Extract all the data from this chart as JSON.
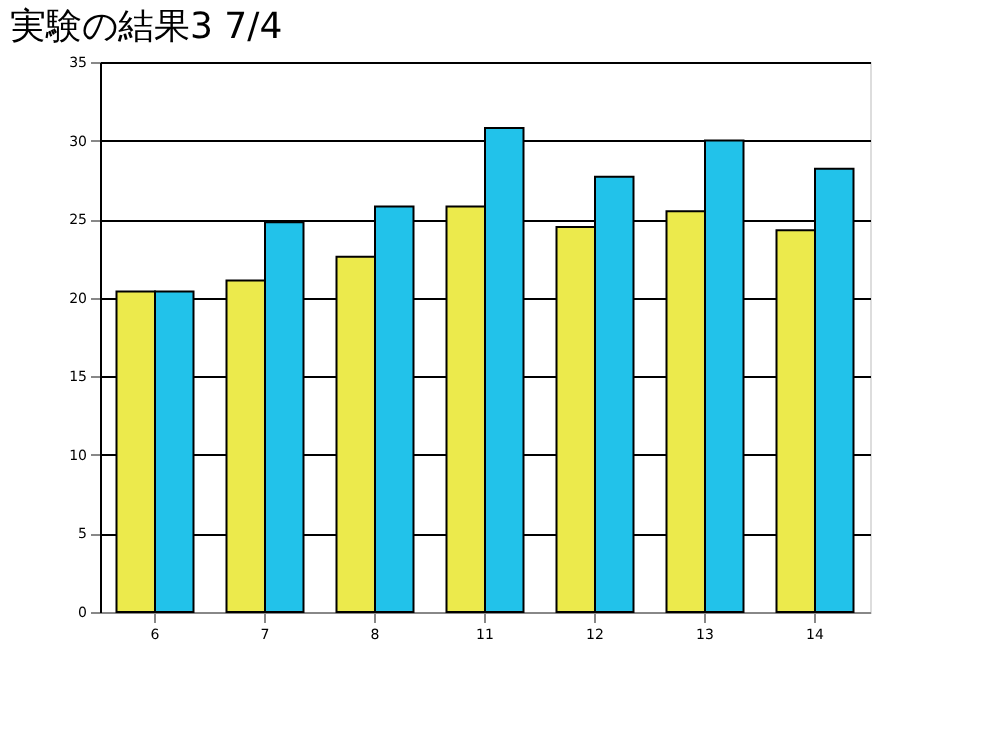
{
  "chart_data": {
    "type": "bar",
    "title": "実験の結果3  7/4",
    "categories": [
      "6",
      "7",
      "8",
      "11",
      "12",
      "13",
      "14"
    ],
    "series": [
      {
        "color": "#ecea4c",
        "values": [
          20.4,
          21.1,
          22.6,
          25.8,
          24.5,
          25.5,
          24.3
        ]
      },
      {
        "color": "#22c2ea",
        "values": [
          20.4,
          24.8,
          25.8,
          30.8,
          27.7,
          30.0,
          28.2
        ]
      }
    ],
    "ylim": [
      0,
      35
    ],
    "yticks": [
      0,
      5,
      10,
      15,
      20,
      25,
      30,
      35
    ],
    "grid": "y"
  }
}
